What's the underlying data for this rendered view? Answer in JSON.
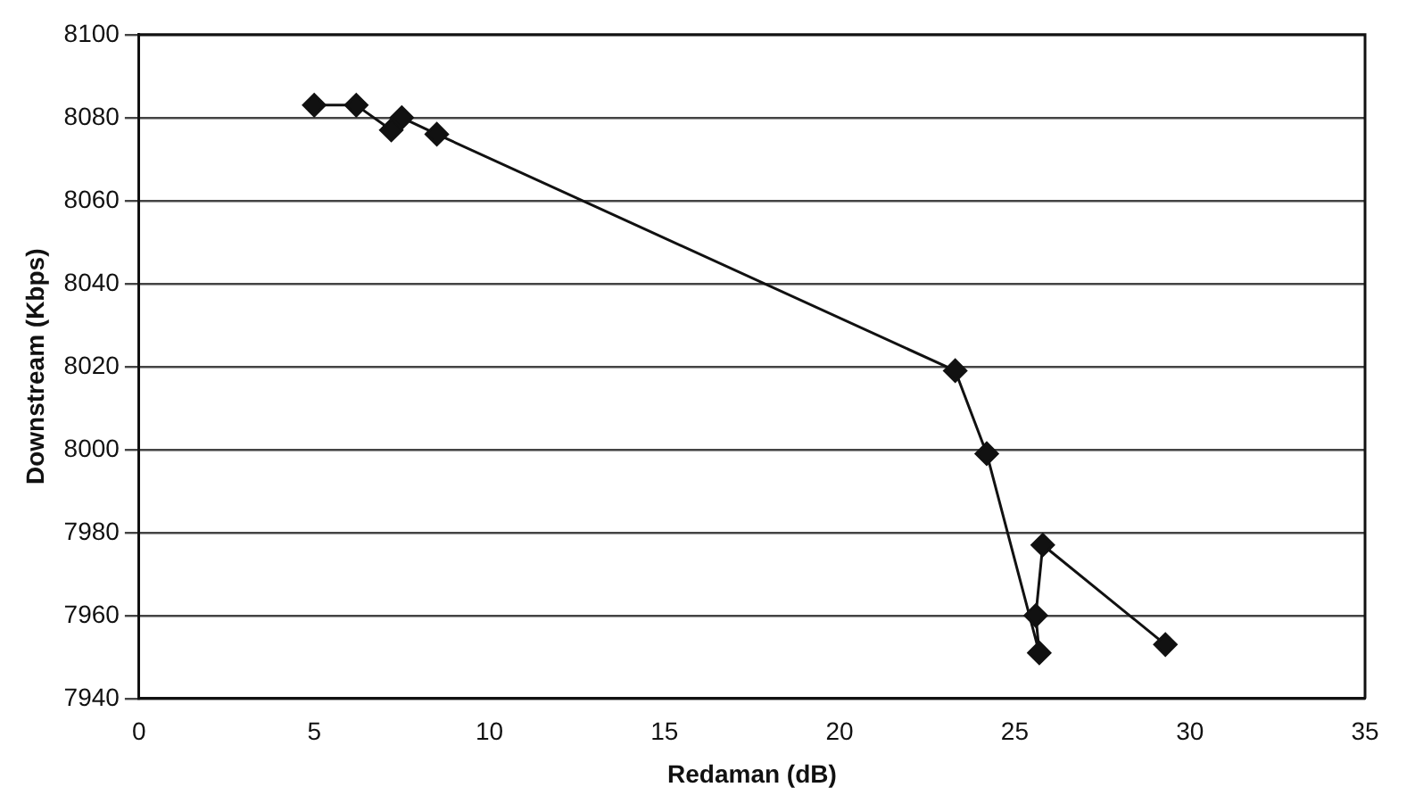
{
  "chart_data": {
    "type": "line",
    "xlabel": "Redaman (dB)",
    "ylabel": "Downstream (Kbps)",
    "xlim": [
      0,
      35
    ],
    "xticks": [
      0,
      5,
      10,
      15,
      20,
      25,
      30,
      35
    ],
    "ylim": [
      7940,
      8100
    ],
    "yticks": [
      7940,
      7960,
      7980,
      8000,
      8020,
      8040,
      8060,
      8080,
      8100
    ],
    "grid": "y",
    "legend": false,
    "marker": "diamond",
    "line_style": "solid",
    "series": [
      {
        "color": "#111111",
        "x": [
          5,
          6.2,
          7.2,
          7.5,
          8.5,
          23.3,
          24.2,
          25.7,
          25.6,
          25.8,
          29.3
        ],
        "values": [
          8083,
          8083,
          8077,
          8080,
          8076,
          8019,
          7999,
          7951,
          7960,
          7977,
          7953
        ]
      }
    ]
  }
}
